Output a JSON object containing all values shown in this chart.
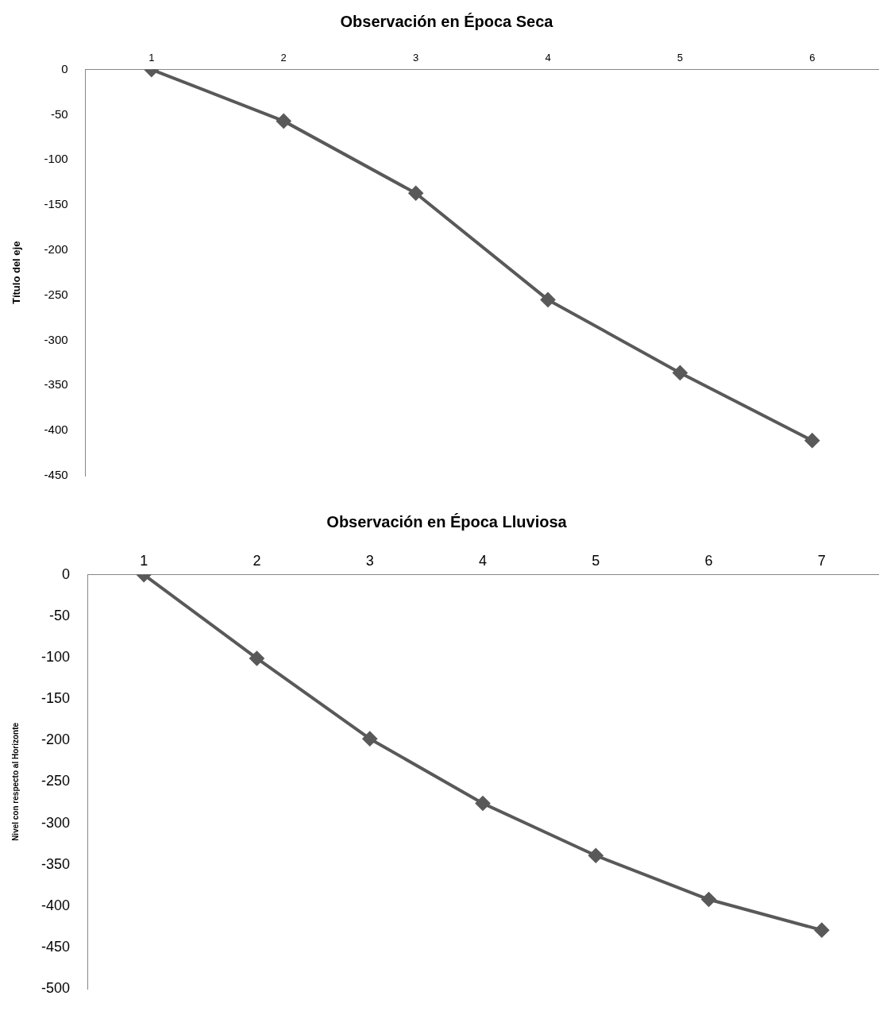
{
  "chart_data": [
    {
      "type": "line",
      "title": "Observación en Época Seca",
      "ylabel": "Título del eje",
      "categories": [
        "1",
        "2",
        "3",
        "4",
        "5",
        "6"
      ],
      "series": [
        {
          "color": "#595959",
          "values": [
            0,
            -57,
            -137,
            -255,
            -336,
            -411
          ]
        }
      ],
      "ylim": [
        -450,
        0
      ],
      "yticks": [
        -450,
        -400,
        -350,
        -300,
        -250,
        -200,
        -150,
        -100,
        -50,
        0
      ],
      "grid": false,
      "legend": false,
      "marker": "diamond",
      "line_style": "solid"
    },
    {
      "type": "line",
      "title": "Observación en Época Lluviosa",
      "ylabel": "Nivel con respecto al Horizonte",
      "categories": [
        "1",
        "2",
        "3",
        "4",
        "5",
        "6",
        "7"
      ],
      "series": [
        {
          "color": "#595959",
          "values": [
            0,
            -101,
            -198,
            -276,
            -339,
            -392,
            -429
          ]
        }
      ],
      "ylim": [
        -500,
        0
      ],
      "yticks": [
        -500,
        -450,
        -400,
        -350,
        -300,
        -250,
        -200,
        -150,
        -100,
        -50,
        0
      ],
      "grid": false,
      "legend": false,
      "marker": "diamond",
      "line_style": "solid"
    }
  ]
}
